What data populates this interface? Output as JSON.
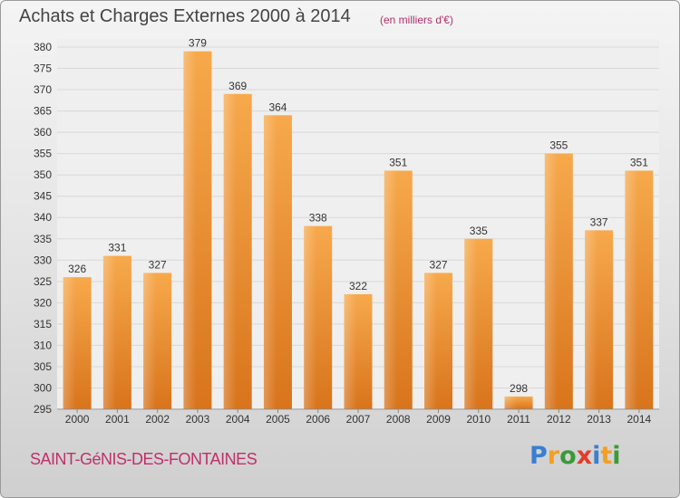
{
  "title": "Achats et Charges Externes 2000 à 2014",
  "unit_note": "(en milliers d'€)",
  "commune": "SAINT-GéNIS-DES-FONTAINES",
  "logo": {
    "letters": [
      "P",
      "r",
      "o",
      "x",
      "i",
      "t",
      "i"
    ],
    "colors": [
      "#3a7fd0",
      "#f29f22",
      "#3a9a36",
      "#e23c2c",
      "#3a7fd0",
      "#f29f22",
      "#3a9a36"
    ]
  },
  "chart_data": {
    "type": "bar",
    "categories": [
      "2000",
      "2001",
      "2002",
      "2003",
      "2004",
      "2005",
      "2006",
      "2007",
      "2008",
      "2009",
      "2010",
      "2011",
      "2012",
      "2013",
      "2014"
    ],
    "values": [
      326,
      331,
      327,
      379,
      369,
      364,
      338,
      322,
      351,
      327,
      335,
      298,
      355,
      337,
      351
    ],
    "ylim": [
      295,
      380
    ],
    "yticks": [
      295,
      300,
      305,
      310,
      315,
      320,
      325,
      330,
      335,
      340,
      345,
      350,
      355,
      360,
      365,
      370,
      375,
      380
    ],
    "grid": true,
    "bar_color": "#f0912f"
  }
}
